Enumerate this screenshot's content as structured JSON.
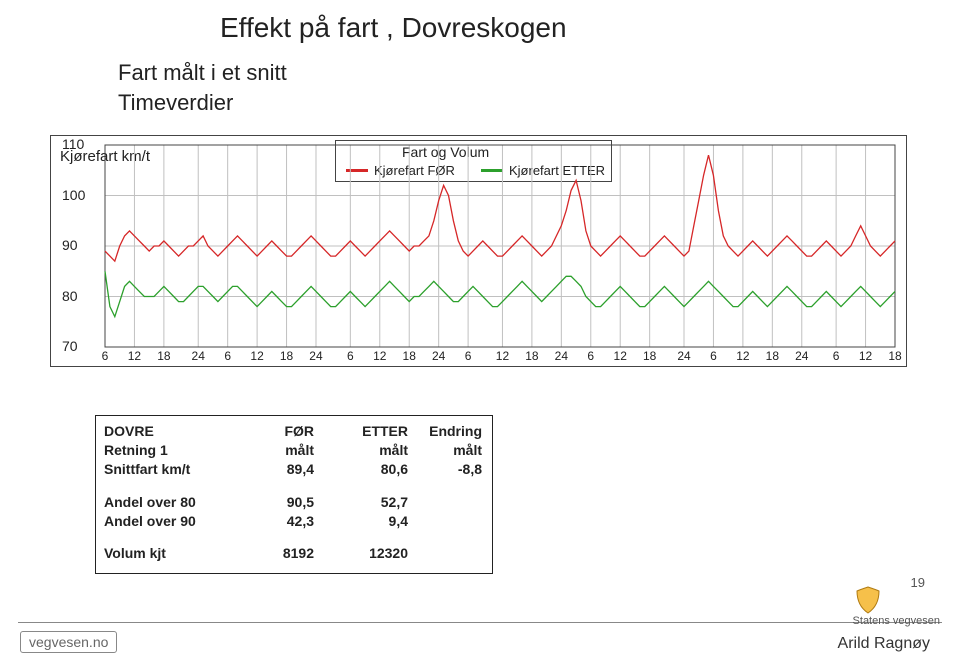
{
  "title": "Effekt på fart , Dovreskogen",
  "subtitle_line1": "Fart målt i et snitt",
  "subtitle_line2": "Timeverdier",
  "footer_name": "Arild Ragnøy",
  "page_number": "19",
  "brand_text": "vegvesen.no",
  "logo_text": "Statens vegvesen",
  "chart": {
    "type": "line",
    "yaxis_label": "Kjørefart km/t",
    "legend_title": "Fart og Volum",
    "series": [
      {
        "name": "Kjørefart FØR",
        "color": "#d62728"
      },
      {
        "name": "Kjørefart ETTER",
        "color": "#2ca02c"
      }
    ],
    "ylim": [
      70,
      110
    ],
    "yticks": [
      110,
      100,
      90,
      80,
      70
    ],
    "xtick_labels": [
      6,
      12,
      18,
      24,
      6,
      12,
      18,
      24,
      6,
      12,
      18,
      24,
      6,
      12,
      18,
      24,
      6,
      12,
      18,
      24,
      6,
      12,
      18,
      24,
      6,
      12,
      18
    ],
    "gridline_color": "#c0c0c0",
    "axis_color": "#444444",
    "background_color": "#ffffff",
    "label_fontsize": 14,
    "line_width": 1.3,
    "n_points": 162,
    "series_data": {
      "for_values": [
        89,
        88,
        87,
        90,
        92,
        93,
        92,
        91,
        90,
        89,
        90,
        90,
        91,
        90,
        89,
        88,
        89,
        90,
        90,
        91,
        92,
        90,
        89,
        88,
        89,
        90,
        91,
        92,
        91,
        90,
        89,
        88,
        89,
        90,
        91,
        90,
        89,
        88,
        88,
        89,
        90,
        91,
        92,
        91,
        90,
        89,
        88,
        88,
        89,
        90,
        91,
        90,
        89,
        88,
        89,
        90,
        91,
        92,
        93,
        92,
        91,
        90,
        89,
        90,
        90,
        91,
        92,
        95,
        99,
        102,
        100,
        95,
        91,
        89,
        88,
        89,
        90,
        91,
        90,
        89,
        88,
        88,
        89,
        90,
        91,
        92,
        91,
        90,
        89,
        88,
        89,
        90,
        92,
        94,
        97,
        101,
        103,
        99,
        93,
        90,
        89,
        88,
        89,
        90,
        91,
        92,
        91,
        90,
        89,
        88,
        88,
        89,
        90,
        91,
        92,
        91,
        90,
        89,
        88,
        89,
        94,
        99,
        104,
        108,
        104,
        97,
        92,
        90,
        89,
        88,
        89,
        90,
        91,
        90,
        89,
        88,
        89,
        90,
        91,
        92,
        91,
        90,
        89,
        88,
        88,
        89,
        90,
        91,
        90,
        89,
        88,
        89,
        90,
        92,
        94,
        92,
        90,
        89,
        88,
        89,
        90,
        91
      ],
      "etter_values": [
        85,
        78,
        76,
        79,
        82,
        83,
        82,
        81,
        80,
        80,
        80,
        81,
        82,
        81,
        80,
        79,
        79,
        80,
        81,
        82,
        82,
        81,
        80,
        79,
        80,
        81,
        82,
        82,
        81,
        80,
        79,
        78,
        79,
        80,
        81,
        80,
        79,
        78,
        78,
        79,
        80,
        81,
        82,
        81,
        80,
        79,
        78,
        78,
        79,
        80,
        81,
        80,
        79,
        78,
        79,
        80,
        81,
        82,
        83,
        82,
        81,
        80,
        79,
        80,
        80,
        81,
        82,
        83,
        82,
        81,
        80,
        79,
        79,
        80,
        81,
        82,
        81,
        80,
        79,
        78,
        78,
        79,
        80,
        81,
        82,
        83,
        82,
        81,
        80,
        79,
        80,
        81,
        82,
        83,
        84,
        84,
        83,
        82,
        80,
        79,
        78,
        78,
        79,
        80,
        81,
        82,
        81,
        80,
        79,
        78,
        78,
        79,
        80,
        81,
        82,
        81,
        80,
        79,
        78,
        79,
        80,
        81,
        82,
        83,
        82,
        81,
        80,
        79,
        78,
        78,
        79,
        80,
        81,
        80,
        79,
        78,
        79,
        80,
        81,
        82,
        81,
        80,
        79,
        78,
        78,
        79,
        80,
        81,
        80,
        79,
        78,
        79,
        80,
        81,
        82,
        81,
        80,
        79,
        78,
        79,
        80,
        81
      ]
    }
  },
  "table": {
    "headers": {
      "c1": "DOVRE",
      "c2": "FØR",
      "c3": "ETTER",
      "c4": "Endring"
    },
    "rows": [
      {
        "c1": "Retning 1",
        "c2": "målt",
        "c3": "målt",
        "c4": "målt",
        "bold": true
      },
      {
        "c1": "Snittfart km/t",
        "c2": "89,4",
        "c3": "80,6",
        "c4": "-8,8",
        "bold": true
      }
    ],
    "rows2": [
      {
        "c1": "Andel over 80",
        "c2": "90,5",
        "c3": "52,7",
        "c4": "",
        "bold": true
      },
      {
        "c1": "  Andel over 90",
        "c2": "42,3",
        "c3": "9,4",
        "c4": "",
        "bold": true
      }
    ],
    "rows3": [
      {
        "c1": "Volum kjt",
        "c2": "8192",
        "c3": "12320",
        "c4": "",
        "bold": true
      }
    ]
  }
}
